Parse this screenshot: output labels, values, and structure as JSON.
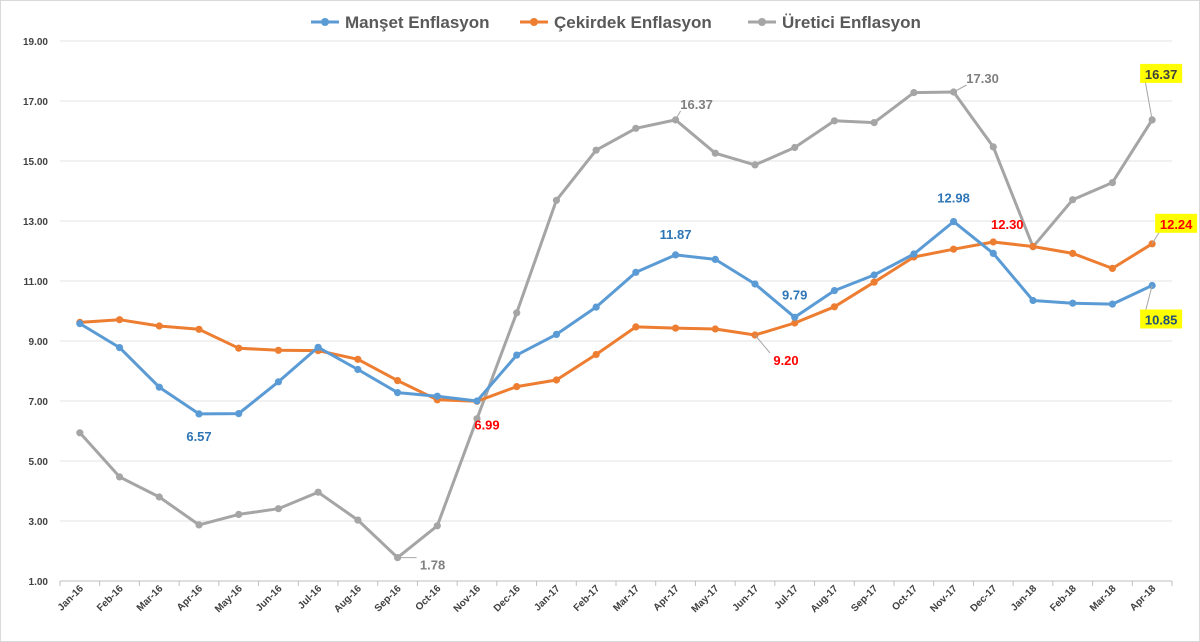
{
  "chart_data": {
    "type": "line",
    "title": "",
    "xlabel": "",
    "ylabel": "",
    "ylim": [
      1,
      19
    ],
    "yticks": [
      "1.00",
      "3.00",
      "5.00",
      "7.00",
      "9.00",
      "11.00",
      "13.00",
      "15.00",
      "17.00",
      "19.00"
    ],
    "grid": "horizontal",
    "legend_position": "top",
    "categories": [
      "Jan-16",
      "Feb-16",
      "Mar-16",
      "Apr-16",
      "May-16",
      "Jun-16",
      "Jul-16",
      "Aug-16",
      "Sep-16",
      "Oct-16",
      "Nov-16",
      "Dec-16",
      "Jan-17",
      "Feb-17",
      "Mar-17",
      "Apr-17",
      "May-17",
      "Jun-17",
      "Jul-17",
      "Aug-17",
      "Sep-17",
      "Oct-17",
      "Nov-17",
      "Dec-17",
      "Jan-18",
      "Feb-18",
      "Mar-18",
      "Apr-18"
    ],
    "series": [
      {
        "name": "Manşet Enflasyon",
        "color": "#5b9bd5",
        "values": [
          9.58,
          8.78,
          7.46,
          6.57,
          6.58,
          7.64,
          8.79,
          8.05,
          7.28,
          7.16,
          7.0,
          8.53,
          9.22,
          10.13,
          11.29,
          11.87,
          11.72,
          10.9,
          9.79,
          10.68,
          11.2,
          11.9,
          12.98,
          11.92,
          10.35,
          10.26,
          10.23,
          10.85
        ],
        "labels": [
          {
            "index": 3,
            "text": "6.57",
            "color": "#2e75b6",
            "highlight": false
          },
          {
            "index": 15,
            "text": "11.87",
            "color": "#2e75b6",
            "highlight": false
          },
          {
            "index": 18,
            "text": "9.79",
            "color": "#2e75b6",
            "highlight": false
          },
          {
            "index": 22,
            "text": "12.98",
            "color": "#2e75b6",
            "highlight": false
          },
          {
            "index": 27,
            "text": "10.85",
            "color": "#1f4e79",
            "highlight": true
          }
        ]
      },
      {
        "name": "Çekirdek Enflasyon",
        "color": "#ed7d31",
        "values": [
          9.62,
          9.71,
          9.5,
          9.39,
          8.76,
          8.69,
          8.68,
          8.39,
          7.68,
          7.04,
          6.99,
          7.48,
          7.7,
          8.55,
          9.47,
          9.43,
          9.4,
          9.2,
          9.6,
          10.14,
          10.96,
          11.8,
          12.06,
          12.3,
          12.15,
          11.92,
          11.42,
          12.24
        ],
        "labels": [
          {
            "index": 10,
            "text": "6.99",
            "color": "#ff0000",
            "highlight": false
          },
          {
            "index": 17,
            "text": "9.20",
            "color": "#ff0000",
            "highlight": false
          },
          {
            "index": 23,
            "text": "12.30",
            "color": "#ff0000",
            "highlight": false
          },
          {
            "index": 27,
            "text": "12.24",
            "color": "#ff0000",
            "highlight": true
          }
        ]
      },
      {
        "name": "Üretici Enflasyon",
        "color": "#a5a5a5",
        "values": [
          5.94,
          4.47,
          3.8,
          2.87,
          3.22,
          3.41,
          3.96,
          3.03,
          1.78,
          2.84,
          6.41,
          9.94,
          13.69,
          15.36,
          16.09,
          16.37,
          15.26,
          14.87,
          15.45,
          16.34,
          16.28,
          17.28,
          17.3,
          15.47,
          12.14,
          13.71,
          14.28,
          16.37
        ],
        "labels": [
          {
            "index": 8,
            "text": "1.78",
            "color": "#7f7f7f",
            "highlight": false
          },
          {
            "index": 15,
            "text": "16.37",
            "color": "#7f7f7f",
            "highlight": false
          },
          {
            "index": 22,
            "text": "17.30",
            "color": "#7f7f7f",
            "highlight": false
          },
          {
            "index": 27,
            "text": "16.37",
            "color": "#404040",
            "highlight": true
          }
        ]
      }
    ]
  }
}
